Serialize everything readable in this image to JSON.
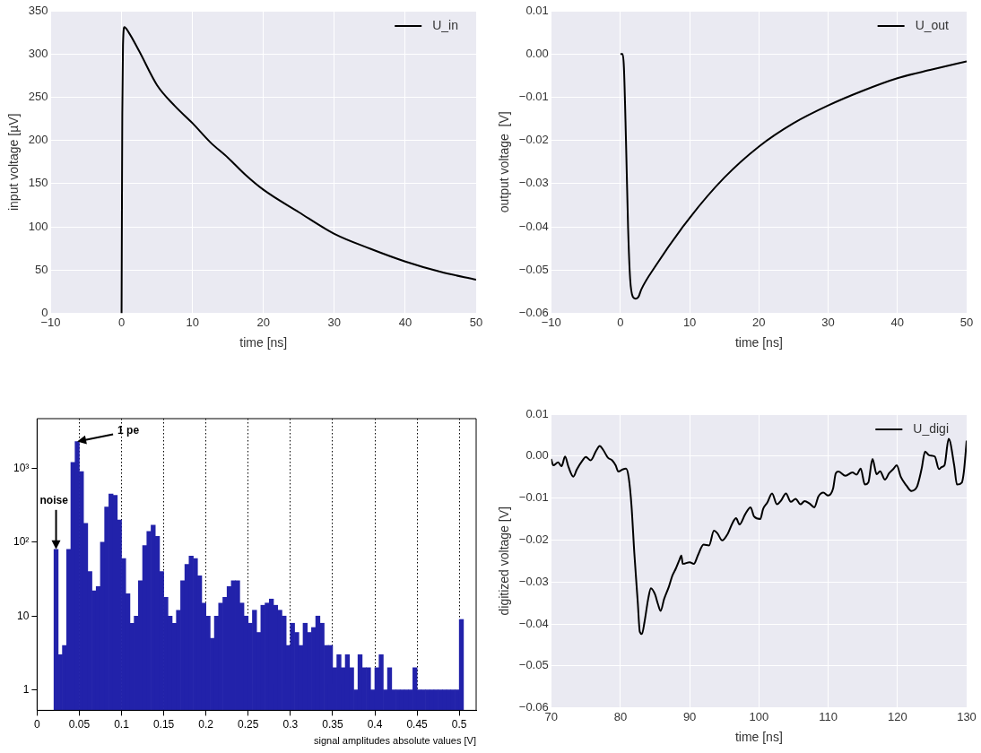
{
  "chart_data": [
    {
      "type": "line",
      "xlabel": "time [ns]",
      "ylabel": "input voltage [µV]",
      "xlim": [
        -10,
        50
      ],
      "xticks": [
        {
          "value": -10,
          "label": "−10"
        },
        0,
        10,
        20,
        30,
        40,
        50
      ],
      "ylim": [
        0,
        350
      ],
      "yticks": [
        0,
        50,
        100,
        150,
        200,
        250,
        300,
        350
      ],
      "grid": true,
      "legend": "top right",
      "series": [
        {
          "name": "U_in",
          "color": "#000000",
          "x": [
            0,
            0.05,
            0.1,
            0.2,
            0.4,
            1,
            2.5,
            5,
            7.5,
            10,
            12.5,
            15,
            17.5,
            20,
            25,
            30,
            35,
            40,
            45,
            50
          ],
          "values": [
            0,
            120,
            230,
            310,
            331,
            325,
            303,
            264,
            240,
            220,
            198,
            180,
            160,
            143,
            117,
            92,
            75,
            60,
            48,
            39
          ]
        }
      ]
    },
    {
      "type": "line",
      "xlabel": "time [ns]",
      "ylabel": "output voltage  [V]",
      "xlim": [
        -10,
        50
      ],
      "xticks": [
        {
          "value": -10,
          "label": "−10"
        },
        0,
        10,
        20,
        30,
        40,
        50
      ],
      "ylim": [
        -0.06,
        0.01
      ],
      "yticks": [
        {
          "value": -0.06,
          "label": "−0.06"
        },
        {
          "value": -0.05,
          "label": "−0.05"
        },
        {
          "value": -0.04,
          "label": "−0.04"
        },
        {
          "value": -0.03,
          "label": "−0.03"
        },
        {
          "value": -0.02,
          "label": "−0.02"
        },
        {
          "value": -0.01,
          "label": "−0.01"
        },
        {
          "value": 0,
          "label": "0.00"
        },
        0.01
      ],
      "grid": true,
      "legend": "top right",
      "series": [
        {
          "name": "U_out",
          "color": "#000000",
          "x": [
            0,
            0.3,
            0.5,
            0.8,
            1.1,
            1.4,
            1.8,
            2.2,
            2.6,
            3,
            5,
            10,
            15,
            20,
            25,
            30,
            35,
            40,
            45,
            50
          ],
          "values": [
            0,
            0,
            -0.003,
            -0.02,
            -0.04,
            -0.052,
            -0.0562,
            -0.0566,
            -0.0562,
            -0.0545,
            -0.0492,
            -0.0379,
            -0.0286,
            -0.0214,
            -0.016,
            -0.0119,
            -0.0085,
            -0.0056,
            -0.0036,
            -0.0017
          ]
        }
      ]
    },
    {
      "type": "histogram",
      "xlabel": "signal amplitudes absolute values [V]",
      "color": "#2222aa",
      "log": "y",
      "grid": "x",
      "xlim": [
        0,
        0.52
      ],
      "xticks": [
        0,
        0.05,
        0.1,
        0.15,
        0.2,
        0.25,
        0.3,
        0.35,
        0.4,
        0.45,
        0.5
      ],
      "ylim": [
        0.53,
        4700
      ],
      "yticks": [
        1,
        10,
        {
          "value": 100,
          "label": "10²"
        },
        {
          "value": 1000,
          "label": "10³"
        }
      ],
      "bins": [
        0.02,
        0.025,
        0.03,
        0.035,
        0.04,
        0.045,
        0.05,
        0.055,
        0.06,
        0.065,
        0.07,
        0.075,
        0.08,
        0.085,
        0.09,
        0.095,
        0.1,
        0.105,
        0.11,
        0.115,
        0.12,
        0.125,
        0.13,
        0.135,
        0.14,
        0.145,
        0.15,
        0.155,
        0.16,
        0.165,
        0.17,
        0.175,
        0.18,
        0.185,
        0.19,
        0.195,
        0.2,
        0.205,
        0.21,
        0.215,
        0.22,
        0.225,
        0.23,
        0.235,
        0.24,
        0.245,
        0.25,
        0.255,
        0.26,
        0.265,
        0.27,
        0.275,
        0.28,
        0.285,
        0.29,
        0.295,
        0.3,
        0.305,
        0.31,
        0.315,
        0.32,
        0.325,
        0.33,
        0.335,
        0.34,
        0.345,
        0.35,
        0.355,
        0.36,
        0.365,
        0.37,
        0.375,
        0.38,
        0.385,
        0.39,
        0.395,
        0.4,
        0.405,
        0.41,
        0.415,
        0.42,
        0.425,
        0.43,
        0.435,
        0.44,
        0.445,
        0.45,
        0.455,
        0.46,
        0.465,
        0.47,
        0.475,
        0.48,
        0.485,
        0.49,
        0.495,
        0.5,
        0.505
      ],
      "values": [
        80,
        3,
        4,
        80,
        1200,
        2300,
        900,
        180,
        40,
        22,
        25,
        100,
        300,
        450,
        430,
        200,
        60,
        20,
        8,
        10,
        30,
        90,
        140,
        170,
        120,
        40,
        18,
        10,
        8,
        12,
        30,
        50,
        65,
        60,
        35,
        15,
        10,
        5,
        10,
        15,
        18,
        25,
        30,
        30,
        15,
        10,
        8,
        12,
        6,
        14,
        15,
        17,
        14,
        12,
        10,
        4,
        8,
        6,
        4,
        8,
        6,
        7,
        10,
        8,
        4,
        4,
        2,
        3,
        2,
        3,
        2,
        1,
        3,
        2,
        2,
        1,
        2,
        3,
        1,
        2,
        1,
        1,
        1,
        1,
        1,
        2,
        1,
        1,
        1,
        1,
        1,
        1,
        1,
        1,
        1,
        1,
        9
      ],
      "annotations": [
        {
          "text": "noise",
          "x": 0.0225,
          "y": 80
        },
        {
          "text": "1 pe",
          "x": 0.0475,
          "y": 2300
        }
      ]
    },
    {
      "type": "line",
      "xlabel": "time [ns]",
      "ylabel": "digitized voltage [V]",
      "xlim": [
        70,
        130
      ],
      "xticks": [
        70,
        80,
        90,
        100,
        110,
        120,
        130
      ],
      "ylim": [
        -0.06,
        0.01
      ],
      "yticks": [
        {
          "value": -0.06,
          "label": "−0.06"
        },
        {
          "value": -0.05,
          "label": "−0.05"
        },
        {
          "value": -0.04,
          "label": "−0.04"
        },
        {
          "value": -0.03,
          "label": "−0.03"
        },
        {
          "value": -0.02,
          "label": "−0.02"
        },
        {
          "value": -0.01,
          "label": "−0.01"
        },
        {
          "value": 0,
          "label": "0.00"
        },
        0.01
      ],
      "grid": true,
      "legend": "top right",
      "series": [
        {
          "name": "U_digi",
          "color": "#000000",
          "x": [
            70,
            70.3,
            71,
            71.5,
            72,
            72.5,
            73.2,
            73.7,
            74.5,
            75,
            75.7,
            76.5,
            77,
            77.5,
            78.2,
            78.8,
            79.3,
            79.7,
            80.3,
            80.8,
            81.2,
            81.6,
            82,
            82.5,
            82.8,
            83.1,
            83.5,
            84,
            84.4,
            85,
            85.4,
            85.8,
            86.3,
            87,
            87.5,
            88,
            88.5,
            88.8,
            89,
            90,
            90.6,
            91.2,
            92,
            92.8,
            93.5,
            94,
            94.7,
            95.5,
            96.2,
            96.7,
            97.2,
            98,
            98.8,
            99.3,
            100.2,
            100.6,
            101.2,
            101.9,
            102.6,
            103.2,
            103.9,
            104.6,
            105.3,
            106,
            106.6,
            107.3,
            108,
            108.6,
            109.3,
            110,
            110.7,
            111.1,
            111.5,
            112.5,
            113.5,
            114.1,
            114.7,
            115.3,
            115.8,
            116.4,
            117,
            117.5,
            118.2,
            118.8,
            119.4,
            119.9,
            120.5,
            121.3,
            122,
            122.8,
            123.5,
            124,
            124.6,
            125.4,
            126,
            126.4,
            126.8,
            127.4,
            128.2,
            128.6,
            129.3,
            129.6,
            130
          ],
          "values": [
            -0.0007,
            -0.0022,
            -0.0015,
            -0.0024,
            -0.0001,
            -0.0026,
            -0.0049,
            -0.0032,
            -0.0011,
            -0.0002,
            -0.001,
            0.0013,
            0.0024,
            0.0015,
            -0.0004,
            -0.001,
            -0.0022,
            -0.0037,
            -0.0032,
            -0.003,
            -0.0052,
            -0.0119,
            -0.023,
            -0.0348,
            -0.0419,
            -0.0424,
            -0.0393,
            -0.0341,
            -0.0315,
            -0.033,
            -0.0352,
            -0.0369,
            -0.0341,
            -0.0311,
            -0.0285,
            -0.0268,
            -0.0248,
            -0.0237,
            -0.0257,
            -0.0253,
            -0.0257,
            -0.0236,
            -0.0211,
            -0.0213,
            -0.0178,
            -0.0184,
            -0.0201,
            -0.0185,
            -0.0159,
            -0.0148,
            -0.0163,
            -0.0139,
            -0.0122,
            -0.0144,
            -0.015,
            -0.0126,
            -0.0111,
            -0.0089,
            -0.0115,
            -0.0106,
            -0.0089,
            -0.0109,
            -0.0102,
            -0.0115,
            -0.0107,
            -0.0113,
            -0.0122,
            -0.0096,
            -0.0087,
            -0.0094,
            -0.0078,
            -0.0041,
            -0.0037,
            -0.0047,
            -0.0039,
            -0.0044,
            -0.003,
            -0.0068,
            -0.0063,
            -0.0007,
            -0.0043,
            -0.0036,
            -0.0056,
            -0.0041,
            -0.0031,
            -0.0022,
            -0.005,
            -0.007,
            -0.0083,
            -0.0074,
            -0.003,
            0.0011,
            0.0002,
            -0.0001,
            -0.0031,
            -0.0026,
            -0.0022,
            0.0041,
            -0.0022,
            -0.0068,
            -0.0063,
            -0.0037,
            0.0037
          ]
        }
      ]
    }
  ]
}
